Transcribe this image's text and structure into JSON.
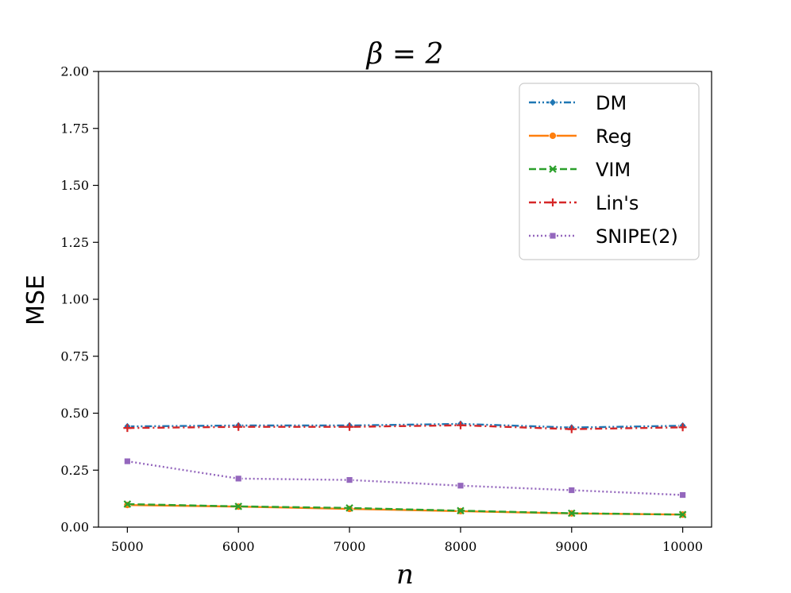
{
  "chart_data": {
    "type": "line",
    "title": "β = 2",
    "xlabel": "n",
    "ylabel": "MSE",
    "x": [
      5000,
      6000,
      7000,
      8000,
      9000,
      10000
    ],
    "xlim": [
      4740,
      10260
    ],
    "ylim": [
      0,
      2.0
    ],
    "xticks": [
      "5000",
      "6000",
      "7000",
      "8000",
      "9000",
      "10000"
    ],
    "yticks": [
      "0.00",
      "0.25",
      "0.50",
      "0.75",
      "1.00",
      "1.25",
      "1.50",
      "1.75",
      "2.00"
    ],
    "grid": false,
    "legend_position": "top-right",
    "series": [
      {
        "name": "DM",
        "values": [
          0.442,
          0.446,
          0.446,
          0.453,
          0.437,
          0.445
        ],
        "color": "#1f77b4",
        "dash": "dash-dot-dot",
        "marker": "diamond"
      },
      {
        "name": "Reg",
        "values": [
          0.097,
          0.09,
          0.08,
          0.07,
          0.06,
          0.055
        ],
        "color": "#ff7f0e",
        "dash": "solid",
        "marker": "circle"
      },
      {
        "name": "VIM",
        "values": [
          0.101,
          0.091,
          0.084,
          0.072,
          0.061,
          0.055
        ],
        "color": "#2ca02c",
        "dash": "dashed",
        "marker": "x"
      },
      {
        "name": "Lin's",
        "values": [
          0.435,
          0.44,
          0.44,
          0.447,
          0.43,
          0.438
        ],
        "color": "#d62728",
        "dash": "dash-dot",
        "marker": "plus"
      },
      {
        "name": "SNIPE(2)",
        "values": [
          0.289,
          0.213,
          0.207,
          0.182,
          0.162,
          0.141
        ],
        "color": "#9467bd",
        "dash": "dotted",
        "marker": "square"
      }
    ]
  }
}
